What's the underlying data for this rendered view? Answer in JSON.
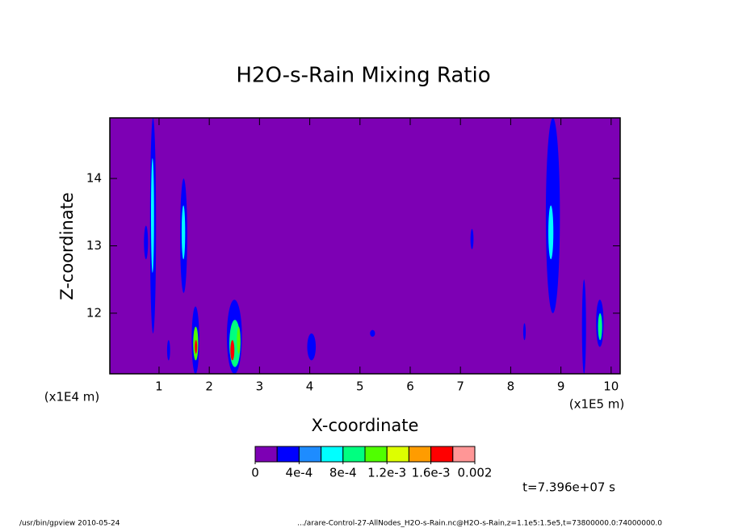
{
  "chart_data": {
    "type": "contour",
    "title": "H2O-s-Rain Mixing Ratio",
    "xlabel": "X-coordinate",
    "ylabel": "Z-coordinate",
    "x_unit": "(x1E5 m)",
    "y_unit": "(x1E4 m)",
    "annotation": "t=7.396e+07 s",
    "footer_left": "/usr/bin/gpview  2010-05-24",
    "footer_right": ".../arare-Control-27-AllNodes_H2O-s-Rain.nc@H2O-s-Rain,z=1.1e5:1.5e5,t=73800000.0:74000000.0",
    "xlim": [
      0.02,
      10.18
    ],
    "ylim": [
      11.1,
      14.9
    ],
    "xticks": [
      1,
      2,
      3,
      4,
      5,
      6,
      7,
      8,
      9,
      10
    ],
    "yticks": [
      12,
      13,
      14
    ],
    "background": "#7d00b4",
    "colorbar": {
      "lim": [
        0,
        0.002
      ],
      "levels": [
        0,
        {
          "value": 0.0004,
          "label": "4e-4"
        },
        {
          "value": 0.0008,
          "label": "8e-4"
        },
        {
          "value": 0.0012,
          "label": "1.2e-3"
        },
        {
          "value": 0.0016,
          "label": "1.6e-3"
        },
        0.002
      ],
      "colors": [
        "#7d00b4",
        "#0000ff",
        "#1e8cff",
        "#00ffff",
        "#00ff80",
        "#50ff00",
        "#ddff00",
        "#ff9c00",
        "#ff0000",
        "#ff9696"
      ]
    },
    "patches": [
      {
        "x": [
          0.82,
          0.94
        ],
        "z": [
          11.7,
          14.9
        ],
        "value": 0.0002
      },
      {
        "x": [
          0.84,
          0.9
        ],
        "z": [
          12.6,
          14.3
        ],
        "value": 0.0006
      },
      {
        "x": [
          0.7,
          0.78
        ],
        "z": [
          12.8,
          13.3
        ],
        "value": 0.0002
      },
      {
        "x": [
          1.42,
          1.56
        ],
        "z": [
          12.3,
          14.0
        ],
        "value": 0.0002
      },
      {
        "x": [
          1.45,
          1.52
        ],
        "z": [
          12.8,
          13.6
        ],
        "value": 0.0006
      },
      {
        "x": [
          1.65,
          1.8
        ],
        "z": [
          11.1,
          12.1
        ],
        "value": 0.0002
      },
      {
        "x": [
          1.68,
          1.78
        ],
        "z": [
          11.3,
          11.8
        ],
        "value": 0.001
      },
      {
        "x": [
          1.71,
          1.76
        ],
        "z": [
          11.4,
          11.6
        ],
        "value": 0.0017
      },
      {
        "x": [
          2.35,
          2.65
        ],
        "z": [
          11.1,
          12.2
        ],
        "value": 0.0002
      },
      {
        "x": [
          2.4,
          2.62
        ],
        "z": [
          11.2,
          11.9
        ],
        "value": 0.0008
      },
      {
        "x": [
          2.42,
          2.5
        ],
        "z": [
          11.3,
          11.6
        ],
        "value": 0.0017
      },
      {
        "x": [
          2.55,
          2.62
        ],
        "z": [
          11.4,
          11.8
        ],
        "value": 0.0011
      },
      {
        "x": [
          1.16,
          1.22
        ],
        "z": [
          11.3,
          11.6
        ],
        "value": 0.0002
      },
      {
        "x": [
          3.95,
          4.12
        ],
        "z": [
          11.3,
          11.7
        ],
        "value": 0.0002
      },
      {
        "x": [
          7.2,
          7.26
        ],
        "z": [
          12.95,
          13.25
        ],
        "value": 0.0002
      },
      {
        "x": [
          8.7,
          8.98
        ],
        "z": [
          12.0,
          14.9
        ],
        "value": 0.0002
      },
      {
        "x": [
          8.75,
          8.85
        ],
        "z": [
          12.8,
          13.6
        ],
        "value": 0.0006
      },
      {
        "x": [
          9.42,
          9.5
        ],
        "z": [
          11.1,
          12.5
        ],
        "value": 0.0002
      },
      {
        "x": [
          9.7,
          9.85
        ],
        "z": [
          11.5,
          12.2
        ],
        "value": 0.0002
      },
      {
        "x": [
          9.74,
          9.82
        ],
        "z": [
          11.6,
          12.0
        ],
        "value": 0.0008
      },
      {
        "x": [
          8.25,
          8.3
        ],
        "z": [
          11.6,
          11.85
        ],
        "value": 0.0002
      },
      {
        "x": [
          5.2,
          5.3
        ],
        "z": [
          11.65,
          11.75
        ],
        "value": 0.0002
      }
    ]
  }
}
